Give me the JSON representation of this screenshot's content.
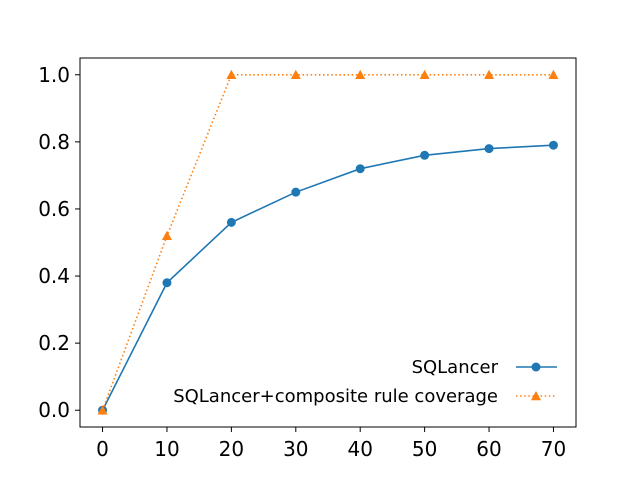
{
  "chart_data": {
    "type": "line",
    "title": "",
    "xlabel": "",
    "ylabel": "",
    "xlim": [
      -3.5,
      73.5
    ],
    "ylim": [
      -0.05,
      1.05
    ],
    "x_ticks": [
      0,
      10,
      20,
      30,
      40,
      50,
      60,
      70
    ],
    "y_ticks": [
      0.0,
      0.2,
      0.4,
      0.6,
      0.8,
      1.0
    ],
    "x_tick_labels": [
      "0",
      "10",
      "20",
      "30",
      "40",
      "50",
      "60",
      "70"
    ],
    "y_tick_labels": [
      "0.0",
      "0.2",
      "0.4",
      "0.6",
      "0.8",
      "1.0"
    ],
    "grid": false,
    "legend_position": "lower-right",
    "x": [
      0,
      10,
      20,
      30,
      40,
      50,
      60,
      70
    ],
    "series": [
      {
        "name": "SQLancer",
        "values": [
          0.0,
          0.38,
          0.56,
          0.65,
          0.72,
          0.76,
          0.78,
          0.79
        ],
        "color": "#1f77b4",
        "line_style": "solid",
        "marker": "circle"
      },
      {
        "name": "SQLancer+composite rule coverage",
        "values": [
          0.0,
          0.52,
          1.0,
          1.0,
          1.0,
          1.0,
          1.0,
          1.0
        ],
        "color": "#ff7f0e",
        "line_style": "dotted",
        "marker": "triangle"
      }
    ]
  }
}
